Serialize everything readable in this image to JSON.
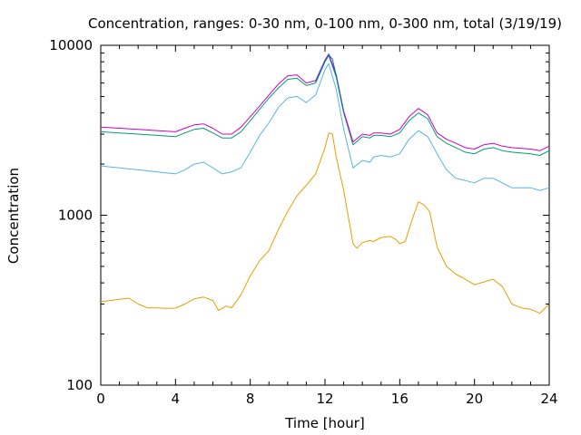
{
  "chart_data": {
    "type": "line",
    "title": "Concentration, ranges: 0-30 nm, 0-100 nm, 0-300 nm, total (3/19/19)",
    "xlabel": "Time [hour]",
    "ylabel": "Concentration",
    "xlim": [
      0,
      24
    ],
    "ylim": [
      100,
      10000
    ],
    "yscale": "log",
    "grid": false,
    "legend": "none",
    "x_ticks": [
      "0",
      "4",
      "8",
      "12",
      "16",
      "20",
      "24"
    ],
    "y_ticks": [
      "100",
      "1000",
      "10000"
    ],
    "series": [
      {
        "color": "#e69f00",
        "points": [
          [
            0,
            310
          ],
          [
            0.5,
            315
          ],
          [
            1,
            320
          ],
          [
            1.5,
            325
          ],
          [
            2,
            300
          ],
          [
            2.5,
            285
          ],
          [
            3,
            285
          ],
          [
            3.5,
            283
          ],
          [
            4,
            284
          ],
          [
            4.5,
            300
          ],
          [
            5,
            322
          ],
          [
            5.5,
            330
          ],
          [
            6,
            315
          ],
          [
            6.3,
            275
          ],
          [
            6.7,
            292
          ],
          [
            7,
            285
          ],
          [
            7.5,
            340
          ],
          [
            8,
            440
          ],
          [
            8.5,
            540
          ],
          [
            9,
            620
          ],
          [
            9.5,
            820
          ],
          [
            10,
            1050
          ],
          [
            10.5,
            1300
          ],
          [
            11,
            1500
          ],
          [
            11.5,
            1750
          ],
          [
            12,
            2500
          ],
          [
            12.2,
            3050
          ],
          [
            12.4,
            3000
          ],
          [
            12.6,
            2200
          ],
          [
            13,
            1400
          ],
          [
            13.5,
            680
          ],
          [
            13.7,
            640
          ],
          [
            14,
            690
          ],
          [
            14.4,
            710
          ],
          [
            14.6,
            700
          ],
          [
            15,
            740
          ],
          [
            15.5,
            750
          ],
          [
            15.8,
            720
          ],
          [
            16,
            680
          ],
          [
            16.3,
            700
          ],
          [
            16.6,
            900
          ],
          [
            17,
            1200
          ],
          [
            17.3,
            1150
          ],
          [
            17.6,
            1050
          ],
          [
            18,
            650
          ],
          [
            18.5,
            500
          ],
          [
            19,
            450
          ],
          [
            19.5,
            420
          ],
          [
            20,
            390
          ],
          [
            20.5,
            405
          ],
          [
            21,
            420
          ],
          [
            21.5,
            380
          ],
          [
            22,
            300
          ],
          [
            22.5,
            285
          ],
          [
            23,
            280
          ],
          [
            23.5,
            265
          ],
          [
            24,
            300
          ]
        ]
      },
      {
        "color": "#56b4e9",
        "points": [
          [
            0,
            1950
          ],
          [
            1,
            1900
          ],
          [
            2,
            1850
          ],
          [
            3,
            1800
          ],
          [
            4,
            1750
          ],
          [
            4.5,
            1850
          ],
          [
            5,
            2000
          ],
          [
            5.5,
            2050
          ],
          [
            6,
            1900
          ],
          [
            6.5,
            1750
          ],
          [
            7,
            1800
          ],
          [
            7.5,
            1900
          ],
          [
            8,
            2350
          ],
          [
            8.5,
            2950
          ],
          [
            9,
            3500
          ],
          [
            9.5,
            4300
          ],
          [
            10,
            4900
          ],
          [
            10.5,
            5000
          ],
          [
            11,
            4600
          ],
          [
            11.5,
            5100
          ],
          [
            12,
            7200
          ],
          [
            12.2,
            7800
          ],
          [
            12.6,
            5500
          ],
          [
            13,
            3200
          ],
          [
            13.5,
            1900
          ],
          [
            14,
            2100
          ],
          [
            14.4,
            2050
          ],
          [
            14.6,
            2200
          ],
          [
            15,
            2250
          ],
          [
            15.5,
            2200
          ],
          [
            16,
            2300
          ],
          [
            16.5,
            2800
          ],
          [
            17,
            3150
          ],
          [
            17.5,
            2900
          ],
          [
            18,
            2300
          ],
          [
            18.5,
            1850
          ],
          [
            19,
            1650
          ],
          [
            19.5,
            1600
          ],
          [
            20,
            1550
          ],
          [
            20.5,
            1650
          ],
          [
            21,
            1650
          ],
          [
            21.5,
            1550
          ],
          [
            22,
            1450
          ],
          [
            23,
            1450
          ],
          [
            23.5,
            1400
          ],
          [
            24,
            1450
          ]
        ]
      },
      {
        "color": "#009e73",
        "points": [
          [
            0,
            3100
          ],
          [
            1,
            3050
          ],
          [
            2,
            3000
          ],
          [
            3,
            2950
          ],
          [
            4,
            2900
          ],
          [
            4.5,
            3050
          ],
          [
            5,
            3200
          ],
          [
            5.5,
            3250
          ],
          [
            6,
            3050
          ],
          [
            6.5,
            2850
          ],
          [
            7,
            2850
          ],
          [
            7.5,
            3100
          ],
          [
            8,
            3600
          ],
          [
            8.5,
            4200
          ],
          [
            9,
            4900
          ],
          [
            9.5,
            5600
          ],
          [
            10,
            6300
          ],
          [
            10.5,
            6400
          ],
          [
            11,
            5800
          ],
          [
            11.5,
            6000
          ],
          [
            12,
            8000
          ],
          [
            12.2,
            8700
          ],
          [
            12.6,
            6500
          ],
          [
            13,
            4000
          ],
          [
            13.5,
            2600
          ],
          [
            14,
            2900
          ],
          [
            14.4,
            2850
          ],
          [
            14.6,
            2950
          ],
          [
            15,
            2950
          ],
          [
            15.5,
            2900
          ],
          [
            16,
            3050
          ],
          [
            16.5,
            3600
          ],
          [
            17,
            4000
          ],
          [
            17.5,
            3700
          ],
          [
            18,
            2900
          ],
          [
            18.5,
            2650
          ],
          [
            19,
            2500
          ],
          [
            19.5,
            2350
          ],
          [
            20,
            2300
          ],
          [
            20.5,
            2450
          ],
          [
            21,
            2500
          ],
          [
            21.5,
            2400
          ],
          [
            22,
            2350
          ],
          [
            23,
            2300
          ],
          [
            23.5,
            2250
          ],
          [
            24,
            2400
          ]
        ]
      },
      {
        "color": "#cc00cc",
        "points": [
          [
            0,
            3300
          ],
          [
            1,
            3250
          ],
          [
            2,
            3200
          ],
          [
            3,
            3150
          ],
          [
            4,
            3100
          ],
          [
            4.5,
            3250
          ],
          [
            5,
            3400
          ],
          [
            5.5,
            3450
          ],
          [
            6,
            3250
          ],
          [
            6.5,
            3000
          ],
          [
            7,
            3000
          ],
          [
            7.5,
            3300
          ],
          [
            8,
            3800
          ],
          [
            8.5,
            4400
          ],
          [
            9,
            5100
          ],
          [
            9.5,
            5900
          ],
          [
            10,
            6600
          ],
          [
            10.5,
            6700
          ],
          [
            11,
            6000
          ],
          [
            11.5,
            6200
          ],
          [
            12,
            8200
          ],
          [
            12.2,
            8900
          ],
          [
            12.6,
            6700
          ],
          [
            13,
            4100
          ],
          [
            13.5,
            2700
          ],
          [
            14,
            3000
          ],
          [
            14.4,
            2950
          ],
          [
            14.6,
            3050
          ],
          [
            15,
            3050
          ],
          [
            15.5,
            3000
          ],
          [
            16,
            3200
          ],
          [
            16.5,
            3800
          ],
          [
            17,
            4250
          ],
          [
            17.5,
            3900
          ],
          [
            18,
            3050
          ],
          [
            18.5,
            2800
          ],
          [
            19,
            2650
          ],
          [
            19.5,
            2500
          ],
          [
            20,
            2450
          ],
          [
            20.5,
            2600
          ],
          [
            21,
            2650
          ],
          [
            21.5,
            2550
          ],
          [
            22,
            2500
          ],
          [
            23,
            2450
          ],
          [
            23.5,
            2400
          ],
          [
            24,
            2550
          ]
        ]
      },
      {
        "color": "#0072b2",
        "points": [
          [
            11.5,
            6100
          ],
          [
            11.8,
            7200
          ],
          [
            12,
            8100
          ],
          [
            12.2,
            8800
          ],
          [
            12.4,
            8300
          ],
          [
            12.6,
            6600
          ],
          [
            13,
            4050
          ]
        ]
      }
    ]
  }
}
